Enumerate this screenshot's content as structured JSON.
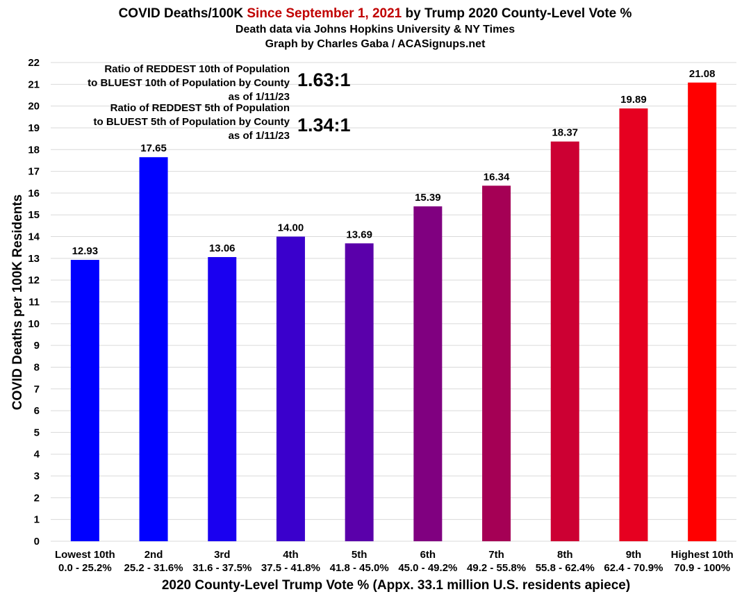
{
  "chart_data": {
    "type": "bar",
    "title": {
      "prefix": "COVID Deaths/100K ",
      "highlight": "Since September 1, 2021",
      "suffix": " by Trump 2020 County-Level Vote %",
      "highlight_color": "#c00000"
    },
    "subtitle": [
      "Death data via Johns Hopkins University & NY Times",
      "Graph by Charles Gaba / ACASignups.net"
    ],
    "xlabel": "2020 County-Level Trump Vote % (Appx. 33.1 million U.S. residents apiece)",
    "ylabel": "COVID Deaths per 100K Residents",
    "ylim": [
      0,
      22
    ],
    "y_ticks": [
      0,
      1,
      2,
      3,
      4,
      5,
      6,
      7,
      8,
      9,
      10,
      11,
      12,
      13,
      14,
      15,
      16,
      17,
      18,
      19,
      20,
      21,
      22
    ],
    "grid": true,
    "categories": [
      "Lowest 10th",
      "2nd",
      "3rd",
      "4th",
      "5th",
      "6th",
      "7th",
      "8th",
      "9th",
      "Highest 10th"
    ],
    "ranges": [
      "0.0 - 25.2%",
      "25.2 - 31.6%",
      "31.6 - 37.5%",
      "37.5 - 41.8%",
      "41.8 - 45.0%",
      "45.0 - 49.2%",
      "49.2 - 55.8%",
      "55.8 - 62.4%",
      "62.4 - 70.9%",
      "70.9 - 100%"
    ],
    "values": [
      12.93,
      17.65,
      13.06,
      14.0,
      13.69,
      15.39,
      16.34,
      18.37,
      19.89,
      21.08
    ],
    "value_labels": [
      "12.93",
      "17.65",
      "13.06",
      "14.00",
      "13.69",
      "15.39",
      "16.34",
      "18.37",
      "19.89",
      "21.08"
    ],
    "colors": [
      "#0000ff",
      "#0000ff",
      "#1a00f0",
      "#3a00cc",
      "#5a00aa",
      "#800080",
      "#a50055",
      "#cc0033",
      "#e60020",
      "#ff0000"
    ],
    "annotations": [
      {
        "lines": [
          "Ratio of REDDEST 10th of Population",
          "to BLUEST 10th of Population by County",
          "as of 1/11/23"
        ],
        "ratio": "1.63:1"
      },
      {
        "lines": [
          "Ratio of REDDEST 5th of Population",
          "to BLUEST 5th of Population by County",
          "as of 1/11/23"
        ],
        "ratio": "1.34:1"
      }
    ]
  }
}
